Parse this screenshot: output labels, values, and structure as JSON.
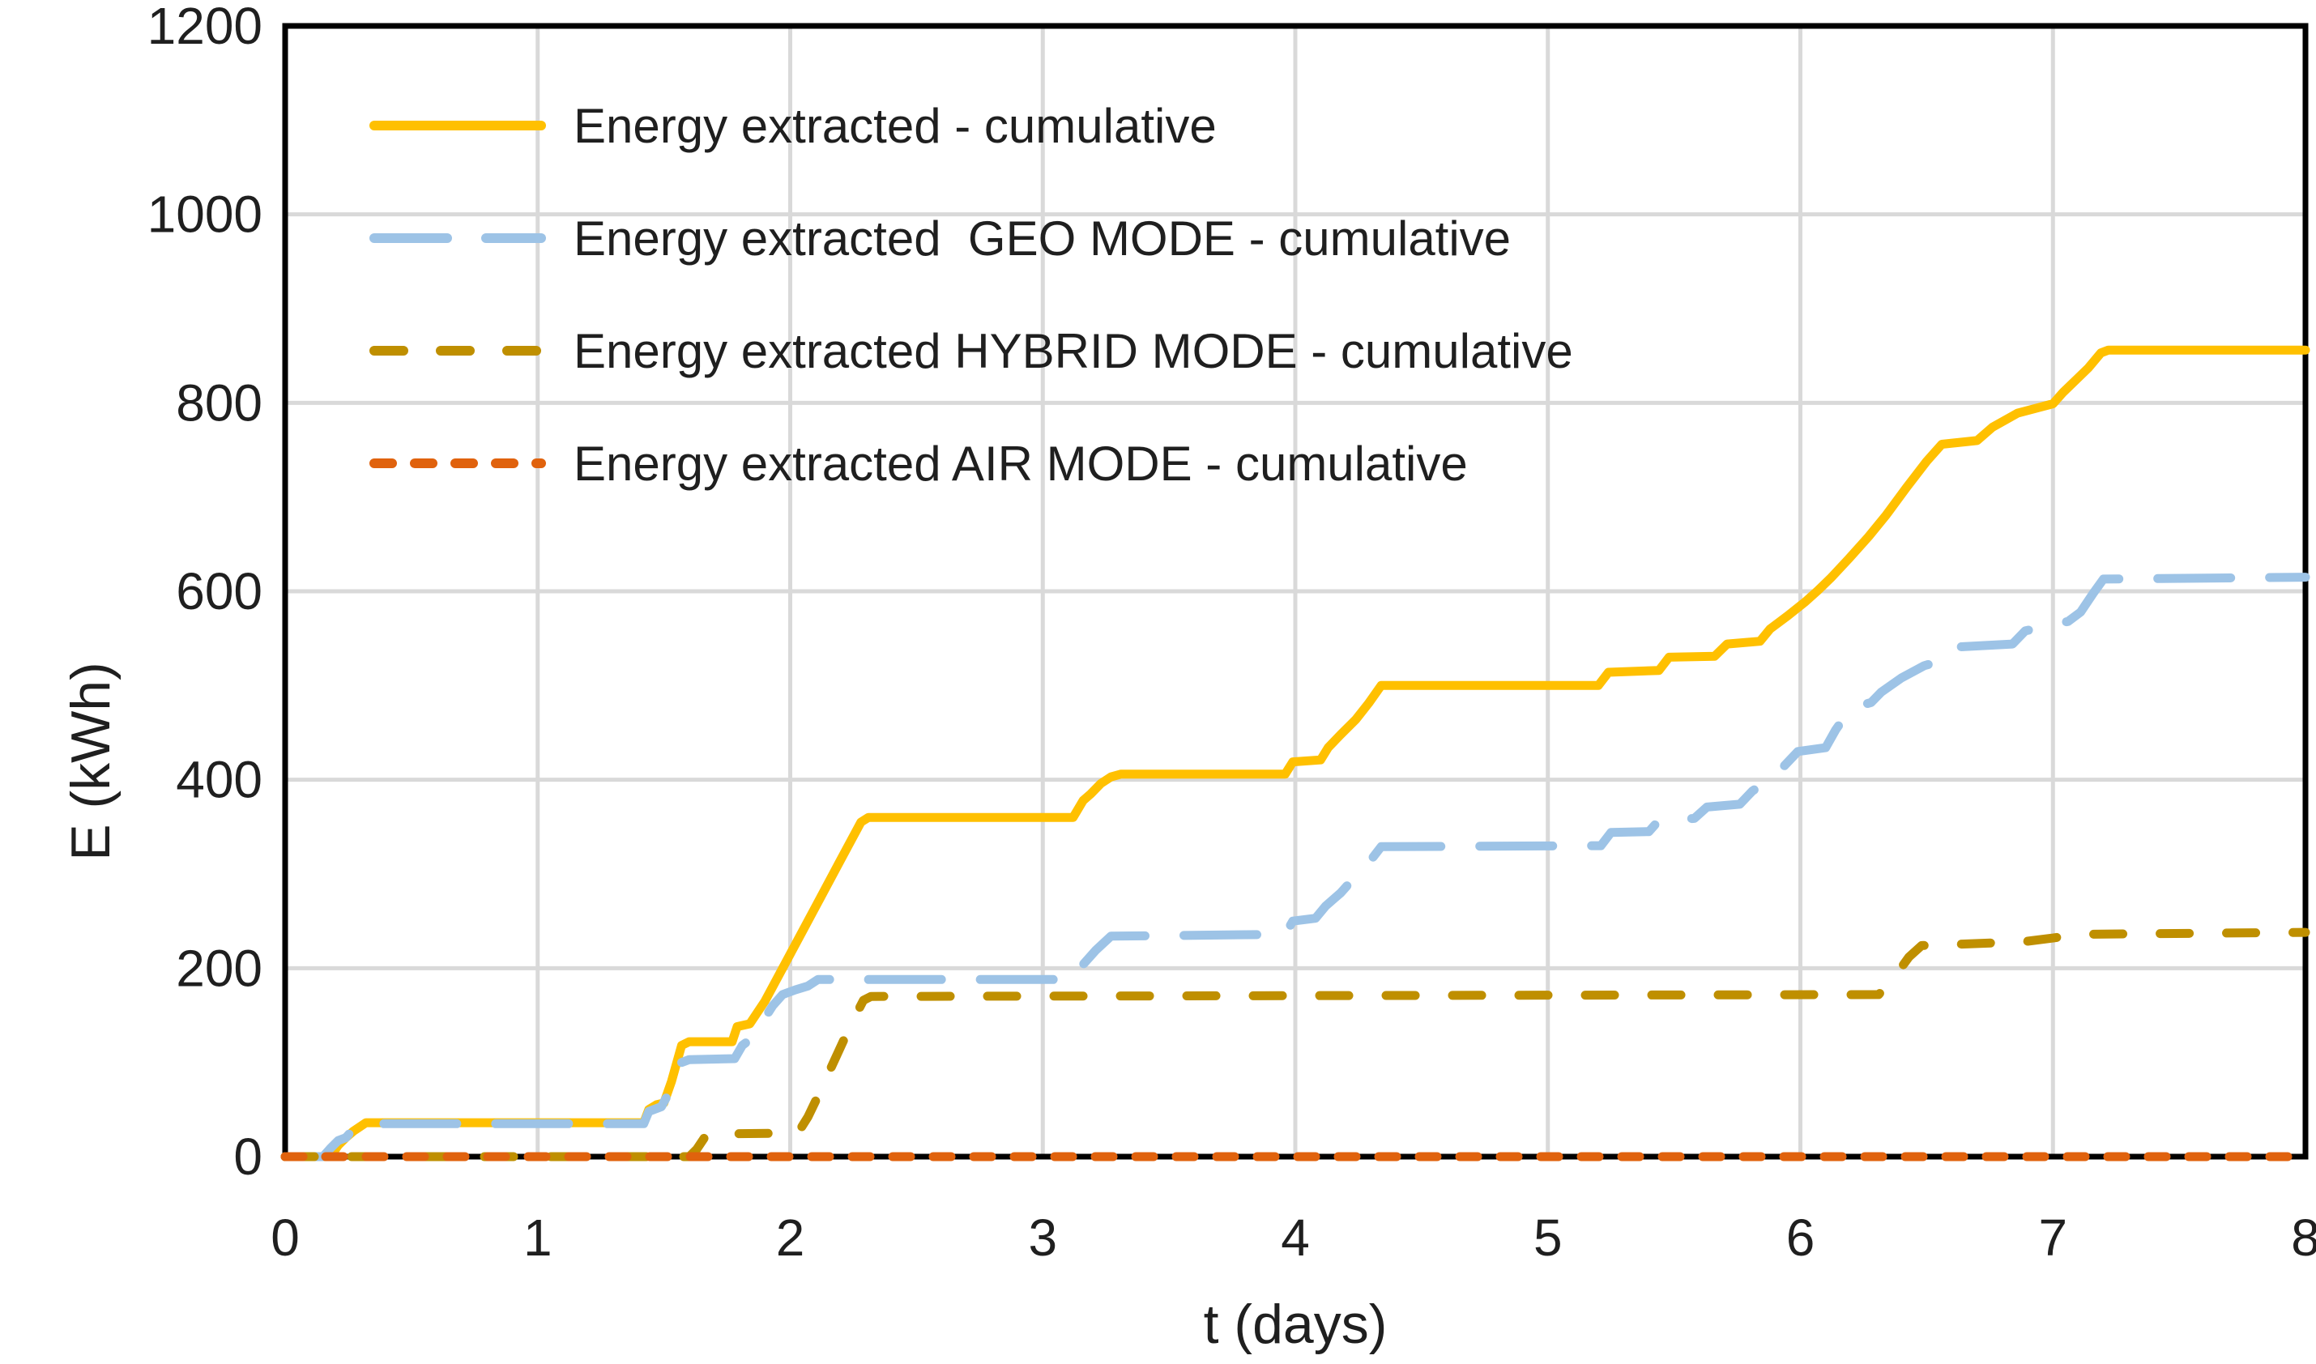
{
  "chart_data": {
    "type": "line",
    "title": "",
    "xlabel": "t (days)",
    "ylabel": "E (kWh)",
    "xlim": [
      0,
      8
    ],
    "ylim": [
      0,
      1200
    ],
    "xticks": [
      0,
      1,
      2,
      3,
      4,
      5,
      6,
      7,
      8
    ],
    "yticks": [
      0,
      200,
      400,
      600,
      800,
      1000,
      1200
    ],
    "grid": true,
    "legend_position": "top-left-inside",
    "colors": {
      "axis_frame": "#000000",
      "gridline": "#d9d9d9",
      "tick_text": "#1f1f1f"
    },
    "series": [
      {
        "name": "Energy extracted - cumulative",
        "color": "#FFC000",
        "line_style": "solid",
        "points": [
          [
            0,
            0
          ],
          [
            0.18,
            0
          ],
          [
            0.21,
            12
          ],
          [
            0.24,
            20
          ],
          [
            0.27,
            27
          ],
          [
            0.32,
            36
          ],
          [
            1.42,
            36
          ],
          [
            1.44,
            50
          ],
          [
            1.47,
            55
          ],
          [
            1.5,
            57
          ],
          [
            1.53,
            80
          ],
          [
            1.57,
            118
          ],
          [
            1.6,
            122
          ],
          [
            1.77,
            122
          ],
          [
            1.79,
            138
          ],
          [
            1.84,
            141
          ],
          [
            1.9,
            165
          ],
          [
            2.0,
            215
          ],
          [
            2.1,
            265
          ],
          [
            2.2,
            315
          ],
          [
            2.28,
            355
          ],
          [
            2.31,
            360
          ],
          [
            3.12,
            360
          ],
          [
            3.16,
            378
          ],
          [
            3.19,
            385
          ],
          [
            3.23,
            396
          ],
          [
            3.27,
            403
          ],
          [
            3.31,
            406
          ],
          [
            3.96,
            406
          ],
          [
            3.99,
            419
          ],
          [
            4.1,
            421
          ],
          [
            4.13,
            434
          ],
          [
            4.18,
            448
          ],
          [
            4.24,
            464
          ],
          [
            4.29,
            481
          ],
          [
            4.34,
            500
          ],
          [
            5.2,
            500
          ],
          [
            5.24,
            514
          ],
          [
            5.44,
            516
          ],
          [
            5.48,
            530
          ],
          [
            5.66,
            531
          ],
          [
            5.71,
            544
          ],
          [
            5.84,
            547
          ],
          [
            5.88,
            560
          ],
          [
            5.95,
            574
          ],
          [
            6.02,
            589
          ],
          [
            6.07,
            601
          ],
          [
            6.12,
            614
          ],
          [
            6.19,
            634
          ],
          [
            6.27,
            658
          ],
          [
            6.34,
            681
          ],
          [
            6.42,
            710
          ],
          [
            6.5,
            738
          ],
          [
            6.56,
            756
          ],
          [
            6.7,
            760
          ],
          [
            6.76,
            774
          ],
          [
            6.86,
            789
          ],
          [
            6.93,
            794
          ],
          [
            7.0,
            799
          ],
          [
            7.04,
            811
          ],
          [
            7.09,
            824
          ],
          [
            7.14,
            837
          ],
          [
            7.19,
            853
          ],
          [
            7.22,
            856
          ],
          [
            8.0,
            856
          ]
        ]
      },
      {
        "name": "Energy extracted  GEO MODE - cumulative",
        "color": "#9DC3E6",
        "line_style": "long-dash",
        "points": [
          [
            0,
            0
          ],
          [
            0.15,
            0
          ],
          [
            0.18,
            9
          ],
          [
            0.21,
            17
          ],
          [
            0.24,
            20
          ],
          [
            0.27,
            29
          ],
          [
            0.3,
            35
          ],
          [
            1.42,
            35
          ],
          [
            1.44,
            48
          ],
          [
            1.49,
            53
          ],
          [
            1.52,
            68
          ],
          [
            1.57,
            100
          ],
          [
            1.6,
            103
          ],
          [
            1.78,
            104
          ],
          [
            1.81,
            118
          ],
          [
            1.85,
            126
          ],
          [
            1.93,
            160
          ],
          [
            1.97,
            172
          ],
          [
            2.02,
            177
          ],
          [
            2.07,
            181
          ],
          [
            2.11,
            188
          ],
          [
            3.12,
            188
          ],
          [
            3.16,
            204
          ],
          [
            3.21,
            219
          ],
          [
            3.27,
            234
          ],
          [
            3.96,
            236
          ],
          [
            3.99,
            250
          ],
          [
            4.08,
            253
          ],
          [
            4.12,
            266
          ],
          [
            4.18,
            280
          ],
          [
            4.24,
            298
          ],
          [
            4.3,
            315
          ],
          [
            4.34,
            329
          ],
          [
            5.21,
            330
          ],
          [
            5.25,
            344
          ],
          [
            5.4,
            345
          ],
          [
            5.44,
            357
          ],
          [
            5.58,
            359
          ],
          [
            5.63,
            371
          ],
          [
            5.76,
            374
          ],
          [
            5.81,
            388
          ],
          [
            5.87,
            399
          ],
          [
            5.93,
            413
          ],
          [
            5.99,
            430
          ],
          [
            6.1,
            434
          ],
          [
            6.14,
            453
          ],
          [
            6.2,
            476
          ],
          [
            6.28,
            482
          ],
          [
            6.32,
            493
          ],
          [
            6.4,
            508
          ],
          [
            6.49,
            521
          ],
          [
            6.58,
            528
          ],
          [
            6.63,
            541
          ],
          [
            6.84,
            544
          ],
          [
            6.89,
            558
          ],
          [
            7.06,
            568
          ],
          [
            7.11,
            578
          ],
          [
            7.16,
            598
          ],
          [
            7.2,
            613
          ],
          [
            8.0,
            615
          ]
        ]
      },
      {
        "name": "Energy extracted HYBRID MODE - cumulative",
        "color": "#BF8F00",
        "line_style": "dash",
        "points": [
          [
            0,
            0
          ],
          [
            1.6,
            0
          ],
          [
            1.63,
            8
          ],
          [
            1.67,
            24
          ],
          [
            2.03,
            25
          ],
          [
            2.07,
            42
          ],
          [
            2.12,
            70
          ],
          [
            2.18,
            105
          ],
          [
            2.24,
            140
          ],
          [
            2.29,
            166
          ],
          [
            2.32,
            170
          ],
          [
            6.31,
            172
          ],
          [
            6.36,
            186
          ],
          [
            6.43,
            212
          ],
          [
            6.48,
            224
          ],
          [
            6.88,
            228
          ],
          [
            7.0,
            232
          ],
          [
            7.1,
            236
          ],
          [
            8.0,
            238
          ]
        ]
      },
      {
        "name": "Energy extracted AIR MODE - cumulative",
        "color": "#E0620D",
        "line_style": "short-dash",
        "points": [
          [
            0,
            0
          ],
          [
            8.0,
            0
          ]
        ]
      }
    ]
  }
}
